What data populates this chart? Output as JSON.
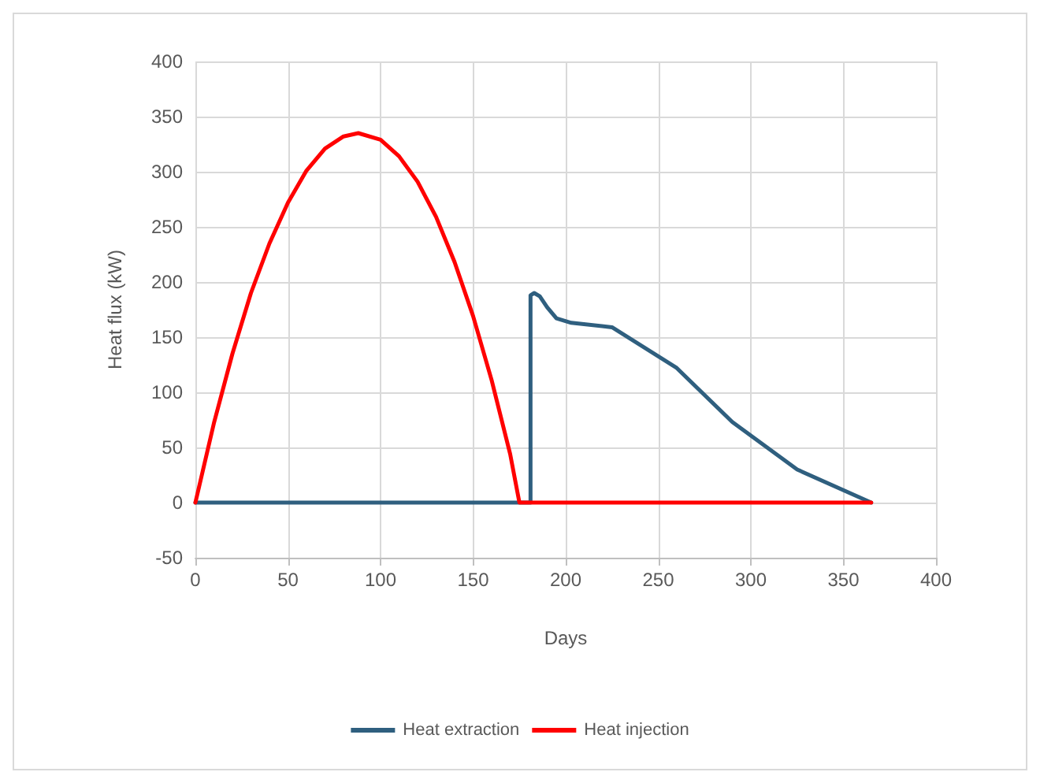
{
  "chart_data": {
    "type": "line",
    "xlabel": "Days",
    "ylabel": "Heat flux (kW)",
    "xlim": [
      0,
      400
    ],
    "xticks": [
      0,
      50,
      100,
      150,
      200,
      250,
      300,
      350,
      400
    ],
    "ylim": [
      -50,
      400
    ],
    "yticks": [
      -50,
      0,
      50,
      100,
      150,
      200,
      250,
      300,
      350,
      400
    ],
    "grid": true,
    "legend": "bottom",
    "marker": "none",
    "line_style": "solid",
    "series": [
      {
        "name": "Heat extraction",
        "color": "#2f5f7f",
        "x": [
          0,
          181,
          181,
          183,
          186,
          190,
          195,
          203,
          225,
          260,
          290,
          325,
          365
        ],
        "values": [
          0,
          0,
          188,
          190,
          187,
          177,
          167,
          163,
          159,
          122,
          73,
          30,
          0
        ]
      },
      {
        "name": "Heat injection",
        "color": "#ff0000",
        "x": [
          0,
          10,
          20,
          30,
          40,
          50,
          60,
          70,
          80,
          88,
          100,
          110,
          120,
          130,
          140,
          150,
          160,
          170,
          175,
          365
        ],
        "values": [
          0,
          72,
          135,
          190,
          235,
          272,
          301,
          321,
          332,
          335,
          329,
          314,
          291,
          259,
          218,
          169,
          111,
          44,
          0,
          0
        ]
      }
    ]
  }
}
